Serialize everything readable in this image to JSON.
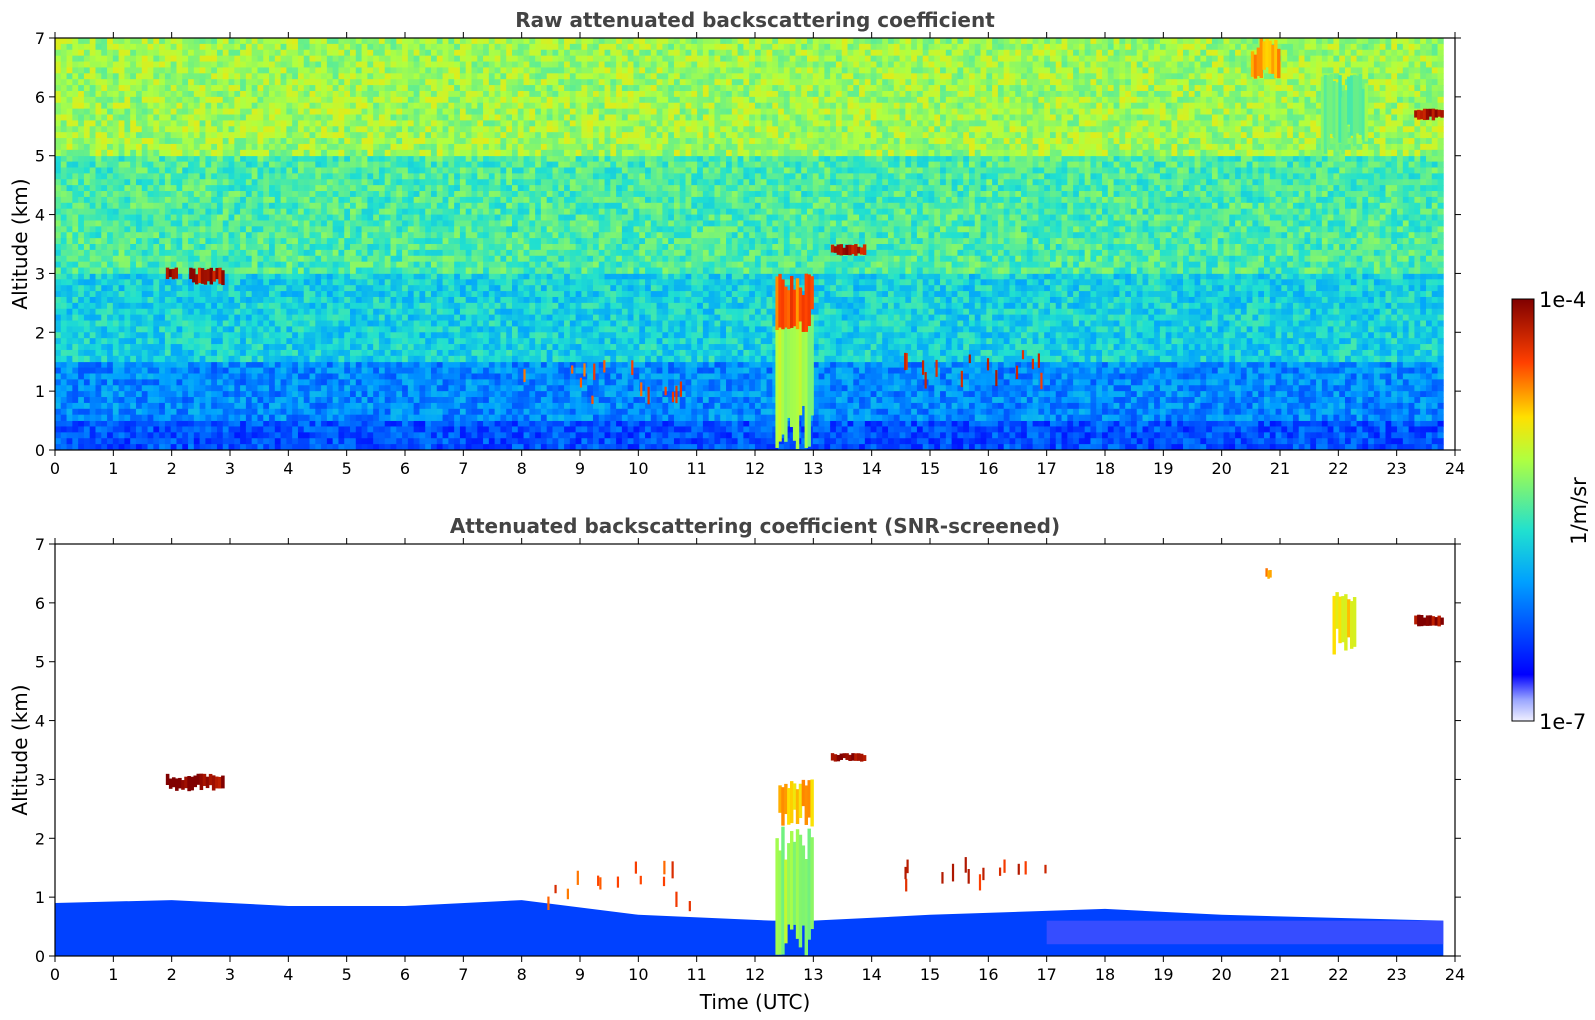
{
  "chart_data": [
    {
      "type": "heatmap",
      "title": "Raw attenuated backscattering coefficient",
      "xlabel": "",
      "ylabel": "Altitude (km)",
      "xlim": [
        0,
        24
      ],
      "ylim": [
        0,
        7
      ],
      "xticks": [
        "0",
        "1",
        "2",
        "3",
        "4",
        "5",
        "6",
        "7",
        "8",
        "9",
        "10",
        "11",
        "12",
        "13",
        "14",
        "15",
        "16",
        "17",
        "18",
        "19",
        "20",
        "21",
        "22",
        "23",
        "24"
      ],
      "yticks": [
        "0",
        "1",
        "2",
        "3",
        "4",
        "5",
        "6",
        "7"
      ],
      "data_end_hour": 23.8,
      "background_levels": [
        {
          "altitude_range": [
            0,
            0.5
          ],
          "level": 0.22
        },
        {
          "altitude_range": [
            0.5,
            1.5
          ],
          "level": 0.3
        },
        {
          "altitude_range": [
            1.5,
            3.0
          ],
          "level": 0.42
        },
        {
          "altitude_range": [
            3.0,
            5.0
          ],
          "level": 0.5
        },
        {
          "altitude_range": [
            5.0,
            7.0
          ],
          "level": 0.6
        }
      ],
      "features": [
        {
          "kind": "cloud",
          "time": [
            1.9,
            2.1
          ],
          "altitude": [
            2.9,
            3.1
          ],
          "level": 0.96
        },
        {
          "kind": "cloud",
          "time": [
            2.3,
            2.9
          ],
          "altitude": [
            2.8,
            3.1
          ],
          "level": 0.94
        },
        {
          "kind": "cloud",
          "time": [
            12.35,
            13.0
          ],
          "altitude": [
            0.0,
            2.6
          ],
          "level": 0.6
        },
        {
          "kind": "cloud",
          "time": [
            12.35,
            13.0
          ],
          "altitude": [
            2.0,
            3.0
          ],
          "level": 0.82
        },
        {
          "kind": "cloud",
          "time": [
            13.3,
            13.9
          ],
          "altitude": [
            3.3,
            3.5
          ],
          "level": 0.95
        },
        {
          "kind": "cloud",
          "time": [
            20.5,
            21.0
          ],
          "altitude": [
            6.3,
            7.0
          ],
          "level": 0.78
        },
        {
          "kind": "cloud",
          "time": [
            21.7,
            22.5
          ],
          "altitude": [
            5.0,
            6.4
          ],
          "level": 0.55
        },
        {
          "kind": "cloud",
          "time": [
            23.3,
            23.8
          ],
          "altitude": [
            5.6,
            5.8
          ],
          "level": 0.96
        },
        {
          "kind": "aerosol",
          "time": [
            8.0,
            11.0
          ],
          "altitude": [
            0.8,
            1.6
          ],
          "level": 0.85
        },
        {
          "kind": "aerosol",
          "time": [
            14.5,
            17.0
          ],
          "altitude": [
            1.3,
            1.7
          ],
          "level": 0.9
        }
      ]
    },
    {
      "type": "heatmap",
      "title": "Attenuated backscattering coefficient (SNR-screened)",
      "xlabel": "Time (UTC)",
      "ylabel": "Altitude (km)",
      "xlim": [
        0,
        24
      ],
      "ylim": [
        0,
        7
      ],
      "xticks": [
        "0",
        "1",
        "2",
        "3",
        "4",
        "5",
        "6",
        "7",
        "8",
        "9",
        "10",
        "11",
        "12",
        "13",
        "14",
        "15",
        "16",
        "17",
        "18",
        "19",
        "20",
        "21",
        "22",
        "23",
        "24"
      ],
      "yticks": [
        "0",
        "1",
        "2",
        "3",
        "4",
        "5",
        "6",
        "7"
      ],
      "data_end_hour": 23.8,
      "boundary_layer_top_km": [
        {
          "time": 0,
          "top": 0.9
        },
        {
          "time": 2,
          "top": 0.95
        },
        {
          "time": 4,
          "top": 0.85
        },
        {
          "time": 6,
          "top": 0.85
        },
        {
          "time": 8,
          "top": 0.95
        },
        {
          "time": 10,
          "top": 0.7
        },
        {
          "time": 12.3,
          "top": 0.6
        },
        {
          "time": 13,
          "top": 0.6
        },
        {
          "time": 15,
          "top": 0.7
        },
        {
          "time": 18,
          "top": 0.8
        },
        {
          "time": 20,
          "top": 0.7
        },
        {
          "time": 23.8,
          "top": 0.6
        }
      ],
      "features": [
        {
          "kind": "cloud",
          "time": [
            1.9,
            2.9
          ],
          "altitude": [
            2.8,
            3.1
          ],
          "level": 0.98
        },
        {
          "kind": "cloud",
          "time": [
            12.35,
            13.0
          ],
          "altitude": [
            0.0,
            2.2
          ],
          "level": 0.6
        },
        {
          "kind": "cloud",
          "time": [
            12.4,
            13.0
          ],
          "altitude": [
            2.2,
            3.0
          ],
          "level": 0.75
        },
        {
          "kind": "cloud",
          "time": [
            13.3,
            13.9
          ],
          "altitude": [
            3.3,
            3.45
          ],
          "level": 0.98
        },
        {
          "kind": "cloud",
          "time": [
            20.75,
            20.85
          ],
          "altitude": [
            6.4,
            6.6
          ],
          "level": 0.8
        },
        {
          "kind": "cloud",
          "time": [
            21.9,
            22.3
          ],
          "altitude": [
            5.1,
            6.2
          ],
          "level": 0.7
        },
        {
          "kind": "cloud",
          "time": [
            23.3,
            23.8
          ],
          "altitude": [
            5.6,
            5.8
          ],
          "level": 0.98
        },
        {
          "kind": "aerosol",
          "time": [
            8.2,
            11.0
          ],
          "altitude": [
            0.9,
            1.7
          ],
          "level": 0.85
        },
        {
          "kind": "aerosol",
          "time": [
            14.5,
            17.0
          ],
          "altitude": [
            1.3,
            1.7
          ],
          "level": 0.9
        }
      ]
    }
  ],
  "colorbar": {
    "label": "1/m/sr",
    "max_label": "1e-4",
    "min_label": "1e-7",
    "colormap": "jet",
    "scale": "log"
  }
}
